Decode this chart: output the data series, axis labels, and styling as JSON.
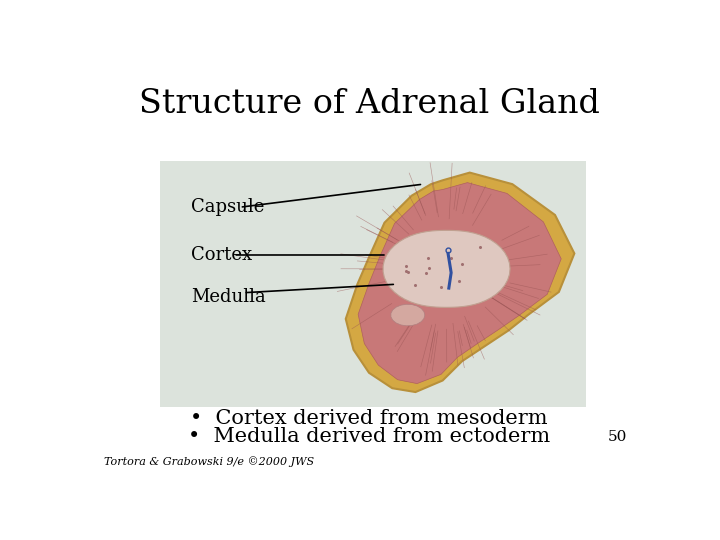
{
  "title": "Structure of Adrenal Gland",
  "title_fontsize": 24,
  "title_fontfamily": "serif",
  "bg_color": "#ffffff",
  "image_bg": "#dce3dc",
  "bullet1": "Cortex derived from mesoderm",
  "bullet2": "Medulla derived from ectoderm",
  "bullet_fontsize": 15,
  "footnote": "Tortora & Grabowski 9/e ©2000 JWS",
  "footnote_fontsize": 8,
  "page_num": "50",
  "page_num_fontsize": 11,
  "label_capsule": "Capsule",
  "label_cortex": "Cortex",
  "label_medulla": "Medulla",
  "label_fontsize": 13,
  "capsule_color": "#d4a843",
  "capsule_edge": "#b8903a",
  "cortex_color": "#c87878",
  "cortex_radial_color": "#9a5555",
  "medulla_color": "#dfc8c0",
  "medulla_edge": "#c0a090",
  "vessel_color": "#3050a0",
  "blob_color": "#d4a8a0",
  "blob_edge": "#b08080",
  "line_color": "#000000"
}
